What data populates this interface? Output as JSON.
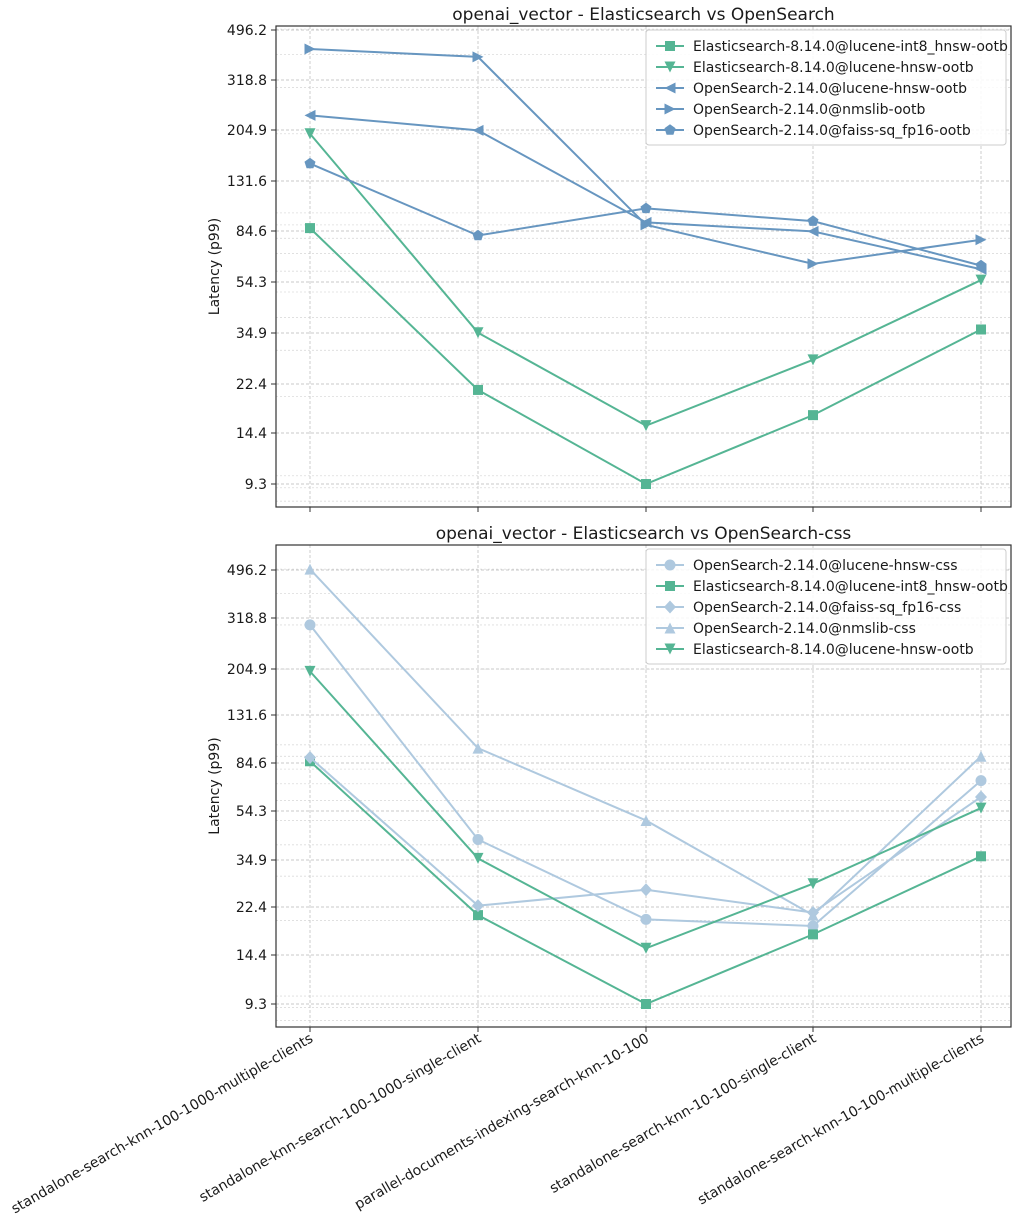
{
  "chart_data": [
    {
      "type": "line",
      "title": "openai_vector - Elasticsearch vs OpenSearch",
      "xlabel": "",
      "ylabel": "Latency (p99)",
      "yscale": "log",
      "yticks": [
        "9.3",
        "14.4",
        "22.4",
        "34.9",
        "54.3",
        "84.6",
        "131.6",
        "204.9",
        "318.8",
        "496.2"
      ],
      "ylim": [
        7.8,
        500
      ],
      "grid": true,
      "legend_position": "top-right",
      "categories": [
        "standalone-search-knn-100-1000-multiple-clients",
        "standalone-knn-search-100-1000-single-client",
        "parallel-documents-indexing-search-knn-10-100",
        "standalone-search-knn-10-100-single-client",
        "standalone-search-knn-10-100-multiple-clients"
      ],
      "series": [
        {
          "name": "Elasticsearch-8.14.0@lucene-int8_hnsw-ootb",
          "color": "#55b594",
          "marker": "square",
          "values": [
            87.5,
            21.2,
            9.3,
            17.0,
            36.0
          ]
        },
        {
          "name": "Elasticsearch-8.14.0@lucene-hnsw-ootb",
          "color": "#55b594",
          "marker": "triangle-down",
          "values": [
            200,
            35.0,
            15.5,
            27.6,
            55.5
          ]
        },
        {
          "name": "OpenSearch-2.14.0@lucene-hnsw-ootb",
          "color": "#6796c0",
          "marker": "triangle-left",
          "values": [
            235,
            206,
            92,
            85,
            61
          ]
        },
        {
          "name": "OpenSearch-2.14.0@nmslib-ootb",
          "color": "#6796c0",
          "marker": "triangle-right",
          "values": [
            420,
            392,
            90,
            64,
            79
          ]
        },
        {
          "name": "OpenSearch-2.14.0@faiss-sq_fp16-ootb",
          "color": "#6796c0",
          "marker": "pentagon",
          "values": [
            154,
            82,
            104,
            93,
            63
          ]
        }
      ]
    },
    {
      "type": "line",
      "title": "openai_vector - Elasticsearch vs OpenSearch-css",
      "xlabel": "",
      "ylabel": "Latency (p99)",
      "yscale": "log",
      "yticks": [
        "9.3",
        "14.4",
        "22.4",
        "34.9",
        "54.3",
        "84.6",
        "131.6",
        "204.9",
        "318.8",
        "496.2"
      ],
      "ylim": [
        7.8,
        560
      ],
      "grid": true,
      "legend_position": "top-right",
      "categories": [
        "standalone-search-knn-100-1000-multiple-clients",
        "standalone-knn-search-100-1000-single-client",
        "parallel-documents-indexing-search-knn-10-100",
        "standalone-search-knn-10-100-single-client",
        "standalone-search-knn-10-100-multiple-clients"
      ],
      "series": [
        {
          "name": "OpenSearch-2.14.0@lucene-hnsw-css",
          "color": "#afc9df",
          "marker": "circle",
          "values": [
            300,
            42,
            20.2,
            19.0,
            72
          ]
        },
        {
          "name": "Elasticsearch-8.14.0@lucene-int8_hnsw-ootb",
          "color": "#55b594",
          "marker": "square",
          "values": [
            86,
            21.0,
            9.3,
            17.6,
            36.0
          ]
        },
        {
          "name": "OpenSearch-2.14.0@faiss-sq_fp16-css",
          "color": "#afc9df",
          "marker": "diamond",
          "values": [
            89,
            22.9,
            26.5,
            21.5,
            62
          ]
        },
        {
          "name": "OpenSearch-2.14.0@nmslib-css",
          "color": "#afc9df",
          "marker": "triangle-up",
          "values": [
            500,
            97,
            50,
            21.0,
            90
          ]
        },
        {
          "name": "Elasticsearch-8.14.0@lucene-hnsw-ootb",
          "color": "#55b594",
          "marker": "triangle-down",
          "values": [
            196,
            35.3,
            15.5,
            28.0,
            56
          ]
        }
      ]
    }
  ]
}
